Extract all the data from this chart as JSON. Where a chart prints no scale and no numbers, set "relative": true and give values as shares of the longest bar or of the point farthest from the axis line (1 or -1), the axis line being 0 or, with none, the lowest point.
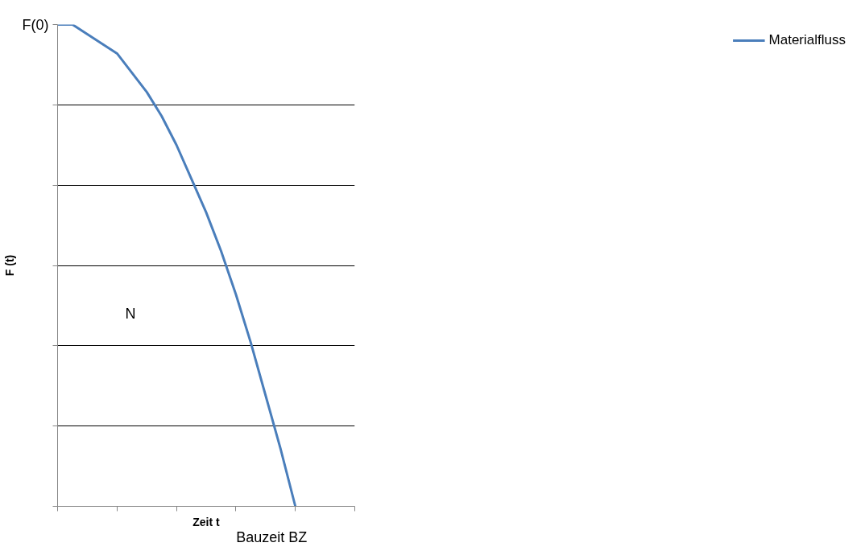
{
  "chart_data": {
    "type": "line",
    "relative": true,
    "xlabel": "Zeit t",
    "ylabel": "F (t)",
    "categories": [
      null,
      null,
      null,
      null,
      null,
      null,
      null,
      null,
      null,
      null,
      null,
      null,
      null,
      null,
      null,
      null,
      null,
      null,
      null,
      null,
      null
    ],
    "series": [
      {
        "name": "Materialfluss",
        "color": "#4a7ebb",
        "values": [
          1,
          1.0,
          0.98,
          0.96,
          0.94,
          0.9,
          0.86,
          0.81,
          0.75,
          0.68,
          0.61,
          0.53,
          0.44,
          0.34,
          0.23,
          0.12,
          0,
          null,
          null,
          null,
          null
        ]
      }
    ],
    "annotations": [
      "F(0)",
      "N",
      "Bauzeit BZ"
    ],
    "grid": "y",
    "legend": "right",
    "marker": "none",
    "line_style": "solid"
  }
}
